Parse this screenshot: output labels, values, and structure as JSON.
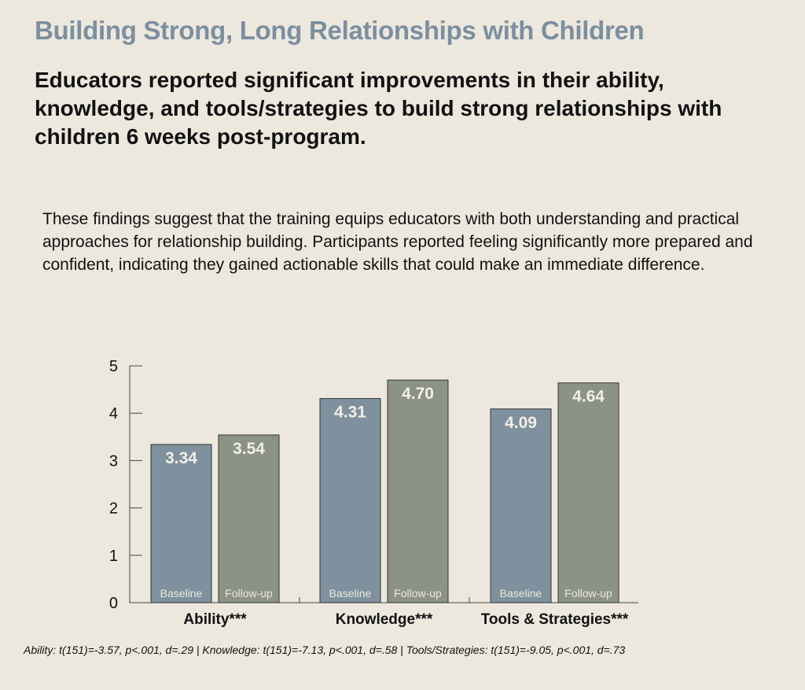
{
  "title": "Building Strong, Long Relationships with Children",
  "headline": {
    "pre": "Educators reported ",
    "bold": "significant improvements",
    "post": " in their ability, knowledge, and tools/strategies to build strong relationships with children 6 weeks post-program."
  },
  "body": "These findings suggest that the training equips educators with both understanding and practical approaches for relationship building. Participants reported feeling significantly more prepared and confident, indicating they gained actionable skills that could make an immediate difference.",
  "footnote": "Ability: t(151)=-3.57, p<.001, d=.29 | Knowledge: t(151)=-7.13, p<.001, d=.58 | Tools/Strategies: t(151)=-9.05, p<.001, d=.73",
  "colors": {
    "baseline": "#7f919e",
    "followup": "#8c9384"
  },
  "chart_data": {
    "type": "bar",
    "categories": [
      "Ability***",
      "Knowledge***",
      "Tools & Strategies***"
    ],
    "series": [
      {
        "name": "Baseline",
        "values": [
          3.34,
          4.31,
          4.09
        ]
      },
      {
        "name": "Follow-up",
        "values": [
          3.54,
          4.7,
          4.64
        ]
      }
    ],
    "yticks": [
      "0",
      "1",
      "2",
      "3",
      "4",
      "5"
    ],
    "ylim": [
      0,
      5
    ],
    "grid": false,
    "xlabel": "",
    "ylabel": ""
  }
}
